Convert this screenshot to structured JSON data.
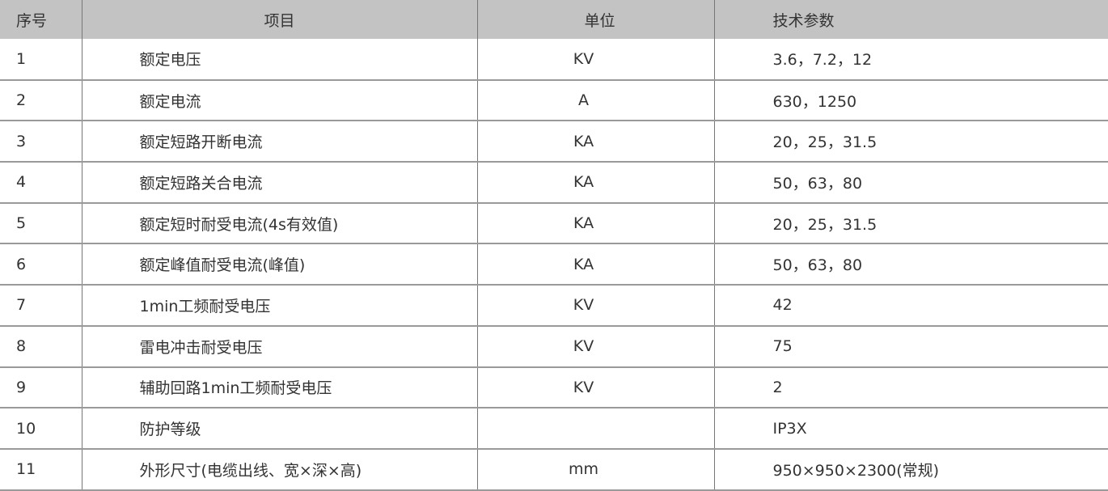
{
  "headers": {
    "no": "序号",
    "item": "项目",
    "unit": "单位",
    "spec": "技术参数"
  },
  "colors": {
    "header_bg": "#c3c3c3",
    "grid": "#9a9a9a"
  },
  "rows": [
    {
      "no": "1",
      "item": "额定电压",
      "unit": "KV",
      "spec": "3.6，7.2，12"
    },
    {
      "no": "2",
      "item": "额定电流",
      "unit": "A",
      "spec": "630，1250"
    },
    {
      "no": "3",
      "item": "额定短路开断电流",
      "unit": "KA",
      "spec": "20，25，31.5"
    },
    {
      "no": "4",
      "item": "额定短路关合电流",
      "unit": "KA",
      "spec": "50，63，80"
    },
    {
      "no": "5",
      "item": "额定短时耐受电流(4s有效值)",
      "unit": "KA",
      "spec": "20，25，31.5"
    },
    {
      "no": "6",
      "item": "额定峰值耐受电流(峰值)",
      "unit": "KA",
      "spec": "50，63，80"
    },
    {
      "no": "7",
      "item": "1min工频耐受电压",
      "unit": "KV",
      "spec": "42"
    },
    {
      "no": "8",
      "item": "雷电冲击耐受电压",
      "unit": "KV",
      "spec": "75"
    },
    {
      "no": "9",
      "item": "辅助回路1min工频耐受电压",
      "unit": "KV",
      "spec": "2"
    },
    {
      "no": "10",
      "item": "防护等级",
      "unit": "",
      "spec": "IP3X"
    },
    {
      "no": "11",
      "item": "外形尺寸(电缆出线、宽×深×高)",
      "unit": "mm",
      "spec": "950×950×2300(常规)"
    }
  ]
}
